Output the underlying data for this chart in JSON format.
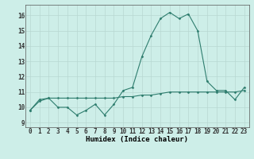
{
  "xlabel": "Humidex (Indice chaleur)",
  "x_values": [
    0,
    1,
    2,
    3,
    4,
    5,
    6,
    7,
    8,
    9,
    10,
    11,
    12,
    13,
    14,
    15,
    16,
    17,
    18,
    19,
    20,
    21,
    22,
    23
  ],
  "line1_y": [
    9.8,
    10.5,
    10.6,
    10.0,
    10.0,
    9.5,
    9.8,
    10.2,
    9.5,
    10.2,
    11.1,
    11.3,
    13.3,
    14.7,
    15.8,
    16.2,
    15.8,
    16.1,
    15.0,
    11.7,
    11.1,
    11.1,
    10.5,
    11.3
  ],
  "line2_y": [
    9.8,
    10.4,
    10.6,
    10.6,
    10.6,
    10.6,
    10.6,
    10.6,
    10.6,
    10.6,
    10.7,
    10.7,
    10.8,
    10.8,
    10.9,
    11.0,
    11.0,
    11.0,
    11.0,
    11.0,
    11.0,
    11.0,
    11.0,
    11.1
  ],
  "ylim": [
    8.7,
    16.7
  ],
  "xlim": [
    -0.5,
    23.5
  ],
  "yticks": [
    9,
    10,
    11,
    12,
    13,
    14,
    15,
    16
  ],
  "xticks": [
    0,
    1,
    2,
    3,
    4,
    5,
    6,
    7,
    8,
    9,
    10,
    11,
    12,
    13,
    14,
    15,
    16,
    17,
    18,
    19,
    20,
    21,
    22,
    23
  ],
  "line_color": "#2e7d6e",
  "bg_color": "#cdeee8",
  "grid_color": "#b8d8d2",
  "tick_fontsize": 5.5,
  "label_fontsize": 6.5
}
